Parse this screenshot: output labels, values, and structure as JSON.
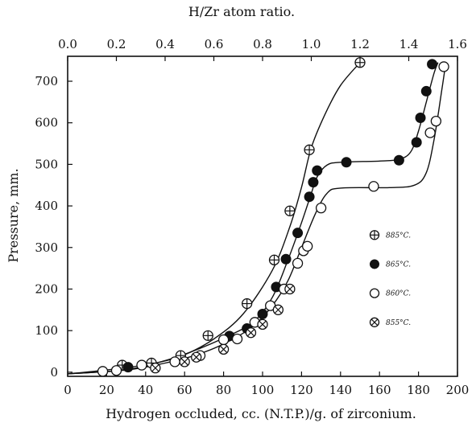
{
  "chart_data": {
    "type": "scatter",
    "top_axis": {
      "label": "H/Zr atom ratio.",
      "range": [
        0.0,
        1.6
      ],
      "ticks": [
        "0.0",
        "0.2",
        "0.4",
        "0.6",
        "0.8",
        "1.0",
        "1.2",
        "1.4",
        "1.6"
      ]
    },
    "xlabel": "Hydrogen occluded, cc. (N.T.P.)/g. of zirconium.",
    "ylabel": "Pressure, mm.",
    "xlim": [
      0,
      200
    ],
    "ylim": [
      -10,
      760
    ],
    "x_ticks": [
      "0",
      "20",
      "40",
      "60",
      "80",
      "100",
      "120",
      "140",
      "160",
      "180",
      "200"
    ],
    "y_ticks": [
      "0",
      "100",
      "200",
      "300",
      "400",
      "500",
      "600",
      "700"
    ],
    "legend_position": "right",
    "series": [
      {
        "name": "885°C.",
        "marker": "circle-plus",
        "points": [
          [
            28,
            17
          ],
          [
            43,
            22
          ],
          [
            58,
            40
          ],
          [
            72,
            88
          ],
          [
            92,
            165
          ],
          [
            106,
            270
          ],
          [
            114,
            388
          ],
          [
            124,
            535
          ],
          [
            150,
            745
          ]
        ],
        "curve": [
          [
            0,
            -4
          ],
          [
            25,
            8
          ],
          [
            45,
            22
          ],
          [
            60,
            42
          ],
          [
            75,
            80
          ],
          [
            90,
            140
          ],
          [
            105,
            245
          ],
          [
            114,
            350
          ],
          [
            120,
            445
          ],
          [
            125,
            540
          ],
          [
            132,
            620
          ],
          [
            140,
            690
          ],
          [
            150,
            745
          ]
        ]
      },
      {
        "name": "865°C.",
        "marker": "filled-circle",
        "points": [
          [
            31,
            12
          ],
          [
            83,
            87
          ],
          [
            92,
            105
          ],
          [
            100,
            140
          ],
          [
            107,
            205
          ],
          [
            112,
            272
          ],
          [
            118,
            335
          ],
          [
            124,
            422
          ],
          [
            126,
            457
          ],
          [
            128,
            485
          ],
          [
            143,
            505
          ],
          [
            170,
            510
          ],
          [
            179,
            553
          ],
          [
            181,
            612
          ],
          [
            184,
            676
          ],
          [
            187,
            741
          ]
        ],
        "curve": [
          [
            0,
            -4
          ],
          [
            30,
            6
          ],
          [
            50,
            28
          ],
          [
            65,
            52
          ],
          [
            80,
            82
          ],
          [
            95,
            120
          ],
          [
            105,
            180
          ],
          [
            113,
            270
          ],
          [
            120,
            360
          ],
          [
            125,
            430
          ],
          [
            128,
            470
          ],
          [
            133,
            498
          ],
          [
            140,
            505
          ],
          [
            160,
            508
          ],
          [
            170,
            512
          ],
          [
            176,
            530
          ],
          [
            180,
            580
          ],
          [
            184,
            650
          ],
          [
            188,
            720
          ],
          [
            190,
            745
          ]
        ]
      },
      {
        "name": "860°C.",
        "marker": "open-circle",
        "points": [
          [
            18,
            2
          ],
          [
            25,
            4
          ],
          [
            38,
            17
          ],
          [
            55,
            25
          ],
          [
            68,
            40
          ],
          [
            80,
            78
          ],
          [
            87,
            80
          ],
          [
            96,
            120
          ],
          [
            104,
            160
          ],
          [
            111,
            200
          ],
          [
            118,
            262
          ],
          [
            121,
            292
          ],
          [
            123,
            303
          ],
          [
            130,
            395
          ],
          [
            157,
            447
          ],
          [
            186,
            576
          ],
          [
            189,
            604
          ],
          [
            193,
            735
          ]
        ],
        "curve": [
          [
            0,
            -4
          ],
          [
            30,
            5
          ],
          [
            50,
            22
          ],
          [
            65,
            40
          ],
          [
            80,
            68
          ],
          [
            95,
            110
          ],
          [
            105,
            160
          ],
          [
            113,
            220
          ],
          [
            120,
            300
          ],
          [
            127,
            380
          ],
          [
            133,
            430
          ],
          [
            140,
            443
          ],
          [
            165,
            444
          ],
          [
            178,
            450
          ],
          [
            184,
            480
          ],
          [
            188,
            560
          ],
          [
            192,
            680
          ],
          [
            194,
            745
          ]
        ]
      },
      {
        "name": "855°C.",
        "marker": "circle-x",
        "points": [
          [
            45,
            10
          ],
          [
            60,
            25
          ],
          [
            66,
            36
          ],
          [
            80,
            55
          ],
          [
            94,
            95
          ],
          [
            100,
            115
          ],
          [
            108,
            150
          ],
          [
            114,
            200
          ]
        ],
        "curve": []
      }
    ]
  }
}
